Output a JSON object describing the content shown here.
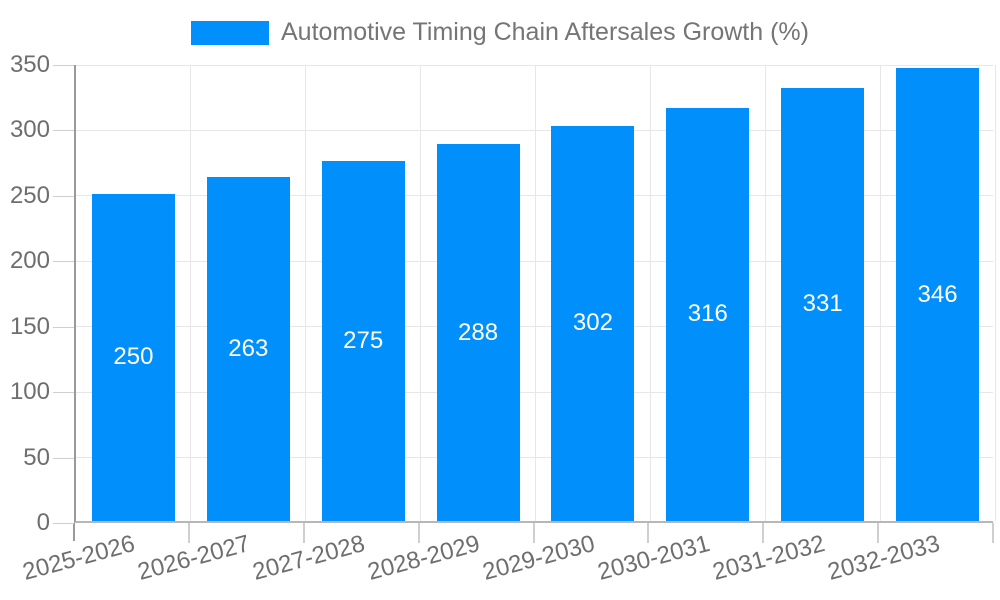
{
  "legend": {
    "position": "top",
    "items": [
      {
        "label": "Automotive Timing Chain Aftersales Growth (%)",
        "marker_color": "#008FFB"
      }
    ]
  },
  "chart_data": {
    "type": "bar",
    "title": "Automotive Timing Chain Aftersales Growth (%)",
    "categories": [
      "2025-2026",
      "2026-2027",
      "2027-2028",
      "2028-2029",
      "2029-2030",
      "2030-2031",
      "2031-2032",
      "2032-2033"
    ],
    "series": [
      {
        "name": "Automotive Timing Chain Aftersales Growth (%)",
        "values": [
          250,
          263,
          275,
          288,
          302,
          316,
          331,
          346
        ]
      }
    ],
    "data_labels": [
      "250",
      "263",
      "275",
      "288",
      "302",
      "316",
      "331",
      "346"
    ],
    "xlabel": "",
    "ylabel": "",
    "ylim": [
      0,
      350
    ],
    "yticks": [
      0,
      50,
      100,
      150,
      200,
      250,
      300,
      350
    ],
    "grid": true,
    "x_label_rotation_deg": -15,
    "legend_position": "top",
    "colors": {
      "bar": "#008FFB",
      "data_label": "#FFFFFF",
      "axis_label": "#6E6E6E",
      "legend_text": "#757575",
      "gridline": "#E7E7E7",
      "axis_line": "#9A9A9A",
      "tick_mark": "#CFCFCF",
      "background": "#FFFFFF"
    }
  }
}
